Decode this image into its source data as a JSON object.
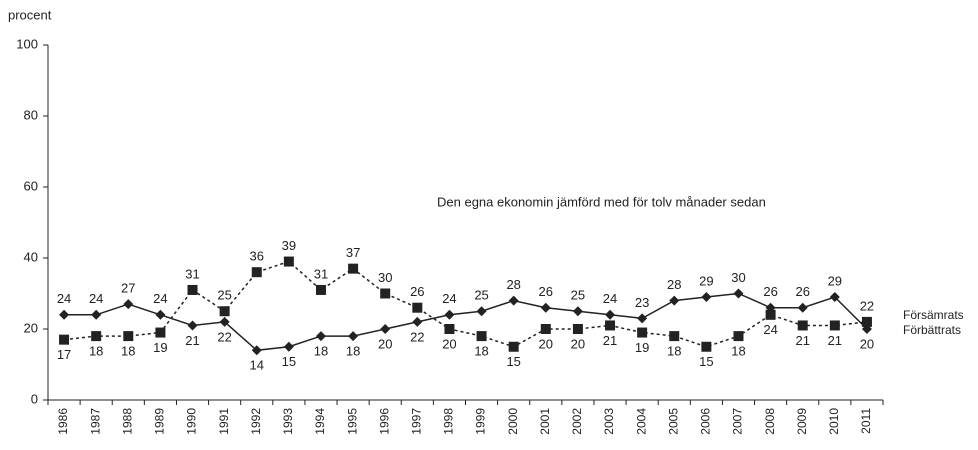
{
  "chart_data": {
    "type": "line",
    "y_label": "procent",
    "annotation": "Den egna ekonomin jämförd med för tolv månader sedan",
    "categories": [
      "1986",
      "1987",
      "1988",
      "1989",
      "1990",
      "1991",
      "1992",
      "1993",
      "1994",
      "1995",
      "1996",
      "1997",
      "1998",
      "1999",
      "2000",
      "2001",
      "2002",
      "2003",
      "2004",
      "2005",
      "2006",
      "2007",
      "2008",
      "2009",
      "2010",
      "2011"
    ],
    "series": [
      {
        "name": "Förbättrats",
        "color": "#222222",
        "dash": false,
        "marker": "diamond",
        "values": [
          24,
          24,
          27,
          24,
          21,
          22,
          14,
          15,
          18,
          18,
          20,
          22,
          24,
          25,
          28,
          26,
          25,
          24,
          23,
          28,
          29,
          30,
          26,
          26,
          29,
          20
        ]
      },
      {
        "name": "Försämrats",
        "color": "#222222",
        "dash": true,
        "marker": "square",
        "values": [
          17,
          18,
          18,
          19,
          31,
          25,
          36,
          39,
          31,
          37,
          30,
          26,
          20,
          18,
          15,
          20,
          20,
          21,
          19,
          18,
          15,
          18,
          24,
          21,
          21,
          22
        ]
      }
    ],
    "ylim": [
      0,
      100
    ],
    "yticks": [
      0,
      20,
      40,
      60,
      80,
      100
    ],
    "grid": false
  }
}
